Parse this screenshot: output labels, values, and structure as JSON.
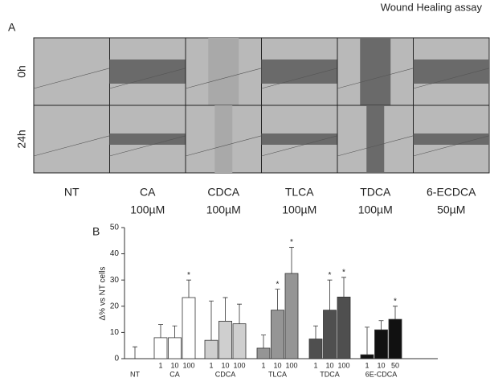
{
  "title": "Wound Healing assay",
  "panel_a": {
    "label": "A",
    "rows": [
      "0h",
      "24h"
    ],
    "columns": [
      {
        "name": "NT"
      },
      {
        "name": "CA",
        "dose": "100µM"
      },
      {
        "name": "CDCA",
        "dose": "100µM"
      },
      {
        "name": "TLCA",
        "dose": "100µM"
      },
      {
        "name": "TDCA",
        "dose": "100µM"
      },
      {
        "name": "6-ECDCA",
        "dose": "50µM"
      }
    ]
  },
  "chart_data": {
    "type": "bar",
    "panel_label": "B",
    "y_label": "Δ% vs NT cells",
    "ylim": [
      0,
      50
    ],
    "yticks": [
      0,
      10,
      20,
      30,
      40,
      50
    ],
    "significance_label": "*",
    "series": [
      {
        "name": "NT",
        "color": "#ffffff",
        "values": [
          0
        ],
        "errors": [
          4.5
        ],
        "significant": [
          false
        ]
      },
      {
        "name": "CA",
        "color": "#ffffff",
        "doses": [
          "1",
          "10",
          "100"
        ],
        "values": [
          8,
          8,
          23.3
        ],
        "errors": [
          5,
          4.5,
          6.7
        ],
        "significant": [
          false,
          false,
          true
        ]
      },
      {
        "name": "CDCA",
        "color": "#cfcfcf",
        "doses": [
          "1",
          "10",
          "100"
        ],
        "values": [
          7,
          14.3,
          13.3
        ],
        "errors": [
          15,
          9,
          7.5
        ],
        "significant": [
          false,
          false,
          false
        ]
      },
      {
        "name": "TLCA",
        "color": "#959595",
        "doses": [
          "1",
          "10",
          "100"
        ],
        "values": [
          4,
          18.5,
          32.5
        ],
        "errors": [
          5,
          8,
          10
        ],
        "significant": [
          false,
          true,
          true
        ]
      },
      {
        "name": "TDCA",
        "color": "#4f4f4f",
        "doses": [
          "1",
          "10",
          "100"
        ],
        "values": [
          7.5,
          18.5,
          23.5
        ],
        "errors": [
          5,
          11.5,
          7.5
        ],
        "significant": [
          false,
          true,
          true
        ]
      },
      {
        "name": "6E-CDCA",
        "color": "#111111",
        "doses": [
          "1",
          "10",
          "50"
        ],
        "values": [
          1.5,
          11,
          15
        ],
        "errors": [
          10.5,
          3.5,
          5
        ],
        "significant": [
          false,
          false,
          true
        ]
      }
    ]
  }
}
